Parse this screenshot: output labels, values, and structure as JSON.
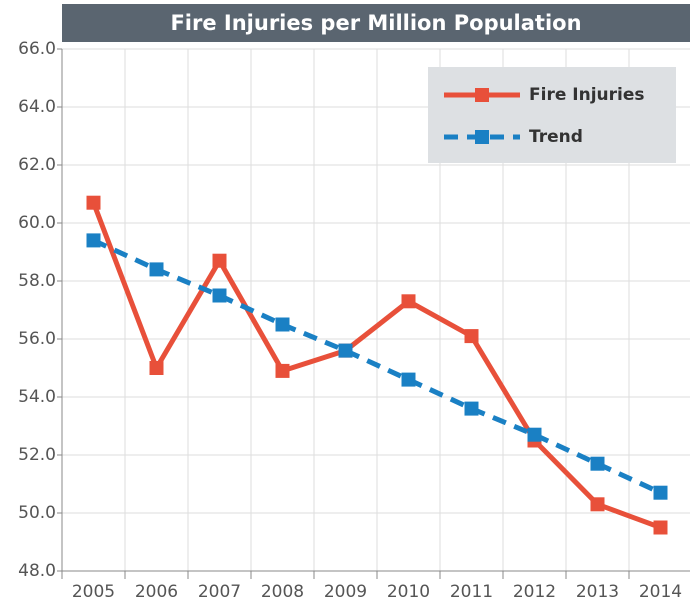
{
  "chart_data": {
    "type": "line",
    "title": "Fire Injuries per Million Population",
    "categories": [
      "2005",
      "2006",
      "2007",
      "2008",
      "2009",
      "2010",
      "2011",
      "2012",
      "2013",
      "2014"
    ],
    "series": [
      {
        "name": "Fire Injuries",
        "color": "#e8503a",
        "dash": false,
        "values": [
          60.7,
          55.0,
          58.7,
          54.9,
          55.6,
          57.3,
          56.1,
          52.5,
          50.3,
          49.5
        ]
      },
      {
        "name": "Trend",
        "color": "#1a80c4",
        "dash": true,
        "values": [
          59.4,
          58.4,
          57.5,
          56.5,
          55.6,
          54.6,
          53.6,
          52.7,
          51.7,
          50.7
        ]
      }
    ],
    "ylim": [
      48,
      66
    ],
    "yticks": [
      {
        "value": 48,
        "label": "48.0"
      },
      {
        "value": 50,
        "label": "50.0"
      },
      {
        "value": 52,
        "label": "52.0"
      },
      {
        "value": 54,
        "label": "54.0"
      },
      {
        "value": 56,
        "label": "56.0"
      },
      {
        "value": 58,
        "label": "58.0"
      },
      {
        "value": 60,
        "label": "60.0"
      },
      {
        "value": 62,
        "label": "62.0"
      },
      {
        "value": 64,
        "label": "64.0"
      },
      {
        "value": 66,
        "label": "66.0"
      }
    ],
    "grid": true,
    "legend": "upper right"
  }
}
